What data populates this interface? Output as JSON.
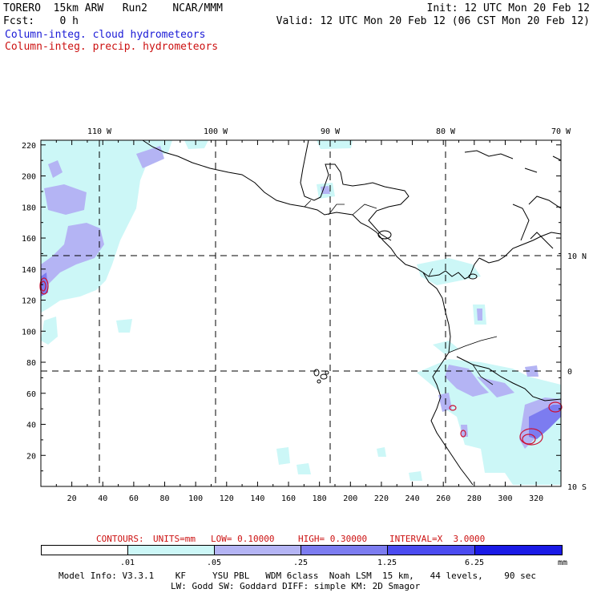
{
  "header": {
    "left_line1": "TORERO  15km ARW   Run2    NCAR/MMM",
    "left_line2": "Fcst:    0 h",
    "right_line1": "Init: 12 UTC Mon 20 Feb 12",
    "right_line2": "Valid: 12 UTC Mon 20 Feb 12 (06 CST Mon 20 Feb 12)",
    "legend_cloud": "Column-integ. cloud hydrometeors",
    "legend_precip": "Column-integ. precip. hydrometeors"
  },
  "colors": {
    "cloud_text": "#1a1ad6",
    "precip_text": "#cc1111",
    "shade1": "#ccf7f7",
    "shade2": "#b4b4f4",
    "shade3": "#7c7cf0",
    "shade4": "#4b4bf0",
    "shade5": "#1a1ae6",
    "precip_contour": "#cc1133"
  },
  "map": {
    "top_lon_labels": [
      "110 W",
      "100 W",
      "90 W",
      "80 W",
      "70 W"
    ],
    "right_lat_labels": [
      "10 N",
      "0",
      "10 S"
    ],
    "y_ticks": [
      "220",
      "200",
      "180",
      "160",
      "140",
      "120",
      "100",
      "80",
      "60",
      "40",
      "20"
    ],
    "x_ticks": [
      "20",
      "40",
      "60",
      "80",
      "100",
      "120",
      "140",
      "160",
      "180",
      "200",
      "220",
      "240",
      "260",
      "280",
      "300",
      "320"
    ]
  },
  "contours": {
    "label": "CONTOURS:",
    "units": "UNITS=mm",
    "low": "LOW= 0.10000",
    "high": "HIGH= 0.30000",
    "interval": "INTERVAL=X  3.0000"
  },
  "colorbar": {
    "labels": [
      ".01",
      ".05",
      ".25",
      "1.25",
      "6.25"
    ],
    "unit": "mm"
  },
  "footer": {
    "line1": "Model Info: V3.3.1    KF     YSU PBL   WDM 6class  Noah LSM  15 km,   44 levels,    90 sec",
    "line2": "LW: Godd SW: Goddard DIFF: simple KM: 2D Smagor"
  }
}
